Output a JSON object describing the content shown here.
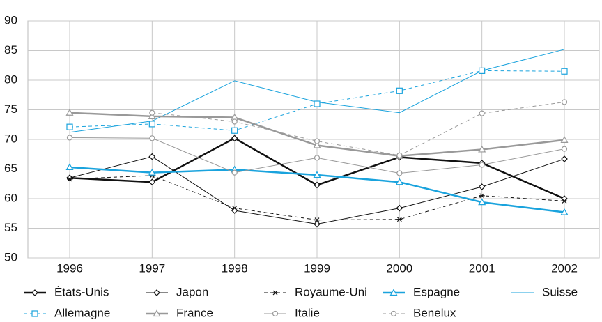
{
  "chart_data": {
    "type": "line",
    "categories": [
      "1996",
      "1997",
      "1998",
      "1999",
      "2000",
      "2001",
      "2002"
    ],
    "ylim": [
      50,
      90
    ],
    "yticks": [
      50,
      55,
      60,
      65,
      70,
      75,
      80,
      85,
      90
    ],
    "grid": true,
    "series": [
      {
        "name": "États-Unis",
        "color": "#111111",
        "width": 2.5,
        "style": "solid",
        "marker": "diamond",
        "values": [
          63.5,
          62.8,
          70.2,
          62.3,
          67.0,
          66.0,
          60.0
        ]
      },
      {
        "name": "Japon",
        "color": "#111111",
        "width": 1,
        "style": "solid",
        "marker": "diamond",
        "values": [
          63.5,
          67.1,
          58.0,
          55.7,
          58.4,
          62.0,
          66.7
        ]
      },
      {
        "name": "Royaume-Uni",
        "color": "#111111",
        "width": 1,
        "style": "dashed",
        "marker": "star",
        "values": [
          63.3,
          63.9,
          58.4,
          56.4,
          56.5,
          60.5,
          59.6
        ]
      },
      {
        "name": "Espagne",
        "color": "#1aa3dd",
        "width": 2.5,
        "style": "solid",
        "marker": "triangle",
        "values": [
          65.3,
          64.4,
          64.9,
          64.0,
          62.8,
          59.4,
          57.7
        ]
      },
      {
        "name": "Suisse",
        "color": "#1aa3dd",
        "width": 1,
        "style": "solid",
        "marker": "none",
        "values": [
          71.2,
          73.1,
          79.9,
          76.3,
          74.5,
          81.6,
          85.2
        ]
      },
      {
        "name": "Allemagne",
        "color": "#1aa3dd",
        "width": 1,
        "style": "dashed",
        "marker": "square",
        "values": [
          72.1,
          72.6,
          71.5,
          76.0,
          78.2,
          81.6,
          81.5
        ]
      },
      {
        "name": "France",
        "color": "#999999",
        "width": 2.5,
        "style": "solid",
        "marker": "triangle",
        "values": [
          74.5,
          73.9,
          73.7,
          69.0,
          67.2,
          68.3,
          69.9
        ]
      },
      {
        "name": "Italie",
        "color": "#999999",
        "width": 1,
        "style": "solid",
        "marker": "circle",
        "values": [
          70.3,
          70.2,
          64.4,
          66.9,
          64.3,
          65.7,
          68.4
        ]
      },
      {
        "name": "Benelux",
        "color": "#999999",
        "width": 1,
        "style": "dashed",
        "marker": "circle",
        "values": [
          null,
          74.5,
          73.0,
          69.7,
          67.3,
          74.4,
          76.3
        ]
      }
    ]
  }
}
